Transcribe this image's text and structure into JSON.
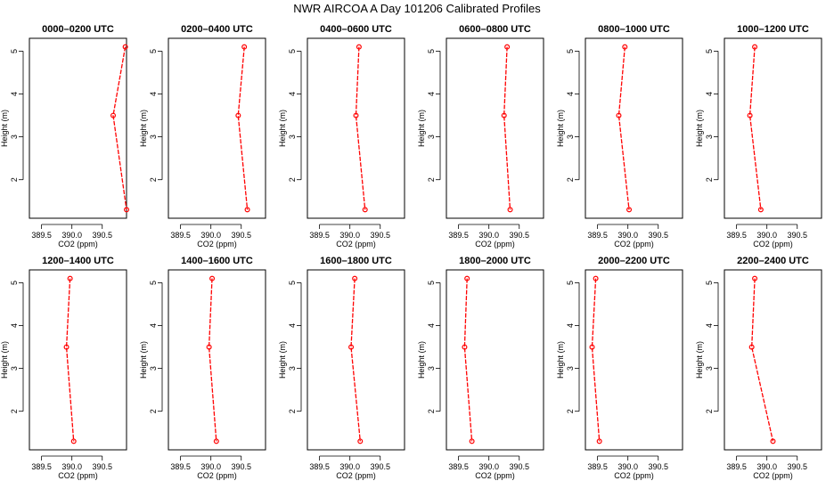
{
  "figure": {
    "title": "NWR AIRCOA A  Day 101206  Calibrated Profiles"
  },
  "chart_data": [
    {
      "type": "line",
      "title": "0000–0200 UTC",
      "xlabel": "CO2 (ppm)",
      "ylabel": "Height (m)",
      "x_ticks": [
        "389.5",
        "390.0",
        "390.5"
      ],
      "y_ticks": [
        "2",
        "3",
        "4",
        "5"
      ],
      "xlim": [
        389.3,
        390.9
      ],
      "ylim": [
        1.1,
        5.3
      ],
      "series": [
        {
          "color": "#ff0000",
          "x": [
            390.88,
            390.68,
            390.9
          ],
          "y": [
            5.1,
            3.5,
            1.3
          ]
        }
      ]
    },
    {
      "type": "line",
      "title": "0200–0400 UTC",
      "xlabel": "CO2 (ppm)",
      "ylabel": "Height (m)",
      "x_ticks": [
        "389.5",
        "390.0",
        "390.5"
      ],
      "y_ticks": [
        "2",
        "3",
        "4",
        "5"
      ],
      "xlim": [
        389.3,
        390.9
      ],
      "ylim": [
        1.1,
        5.3
      ],
      "series": [
        {
          "color": "#ff0000",
          "x": [
            390.55,
            390.45,
            390.6
          ],
          "y": [
            5.1,
            3.5,
            1.3
          ]
        }
      ]
    },
    {
      "type": "line",
      "title": "0400–0600 UTC",
      "xlabel": "CO2 (ppm)",
      "ylabel": "Height (m)",
      "x_ticks": [
        "389.5",
        "390.0",
        "390.5"
      ],
      "y_ticks": [
        "2",
        "3",
        "4",
        "5"
      ],
      "xlim": [
        389.3,
        390.9
      ],
      "ylim": [
        1.1,
        5.3
      ],
      "series": [
        {
          "color": "#ff0000",
          "x": [
            390.15,
            390.1,
            390.25
          ],
          "y": [
            5.1,
            3.5,
            1.3
          ]
        }
      ]
    },
    {
      "type": "line",
      "title": "0600–0800 UTC",
      "xlabel": "CO2 (ppm)",
      "ylabel": "Height (m)",
      "x_ticks": [
        "389.5",
        "390.0",
        "390.5"
      ],
      "y_ticks": [
        "2",
        "3",
        "4",
        "5"
      ],
      "xlim": [
        389.3,
        390.9
      ],
      "ylim": [
        1.1,
        5.3
      ],
      "series": [
        {
          "color": "#ff0000",
          "x": [
            390.3,
            390.25,
            390.35
          ],
          "y": [
            5.1,
            3.5,
            1.3
          ]
        }
      ]
    },
    {
      "type": "line",
      "title": "0800–1000 UTC",
      "xlabel": "CO2 (ppm)",
      "ylabel": "Height (m)",
      "x_ticks": [
        "389.5",
        "390.0",
        "390.5"
      ],
      "y_ticks": [
        "2",
        "3",
        "4",
        "5"
      ],
      "xlim": [
        389.3,
        390.9
      ],
      "ylim": [
        1.1,
        5.3
      ],
      "series": [
        {
          "color": "#ff0000",
          "x": [
            389.95,
            389.85,
            390.02
          ],
          "y": [
            5.1,
            3.5,
            1.3
          ]
        }
      ]
    },
    {
      "type": "line",
      "title": "1000–1200 UTC",
      "xlabel": "CO2 (ppm)",
      "ylabel": "Height (m)",
      "x_ticks": [
        "389.5",
        "390.0",
        "390.5"
      ],
      "y_ticks": [
        "2",
        "3",
        "4",
        "5"
      ],
      "xlim": [
        389.3,
        390.9
      ],
      "ylim": [
        1.1,
        5.3
      ],
      "series": [
        {
          "color": "#ff0000",
          "x": [
            389.8,
            389.72,
            389.9
          ],
          "y": [
            5.1,
            3.5,
            1.3
          ]
        }
      ]
    },
    {
      "type": "line",
      "title": "1200–1400 UTC",
      "xlabel": "CO2 (ppm)",
      "ylabel": "Height (m)",
      "x_ticks": [
        "389.5",
        "390.0",
        "390.5"
      ],
      "y_ticks": [
        "2",
        "3",
        "4",
        "5"
      ],
      "xlim": [
        389.3,
        390.9
      ],
      "ylim": [
        1.1,
        5.3
      ],
      "series": [
        {
          "color": "#ff0000",
          "x": [
            389.97,
            389.91,
            390.03
          ],
          "y": [
            5.1,
            3.5,
            1.3
          ]
        }
      ]
    },
    {
      "type": "line",
      "title": "1400–1600 UTC",
      "xlabel": "CO2 (ppm)",
      "ylabel": "Height (m)",
      "x_ticks": [
        "389.5",
        "390.0",
        "390.5"
      ],
      "y_ticks": [
        "2",
        "3",
        "4",
        "5"
      ],
      "xlim": [
        389.3,
        390.9
      ],
      "ylim": [
        1.1,
        5.3
      ],
      "series": [
        {
          "color": "#ff0000",
          "x": [
            390.02,
            389.97,
            390.09
          ],
          "y": [
            5.1,
            3.5,
            1.3
          ]
        }
      ]
    },
    {
      "type": "line",
      "title": "1600–1800 UTC",
      "xlabel": "CO2 (ppm)",
      "ylabel": "Height (m)",
      "x_ticks": [
        "389.5",
        "390.0",
        "390.5"
      ],
      "y_ticks": [
        "2",
        "3",
        "4",
        "5"
      ],
      "xlim": [
        389.3,
        390.9
      ],
      "ylim": [
        1.1,
        5.3
      ],
      "series": [
        {
          "color": "#ff0000",
          "x": [
            390.08,
            390.02,
            390.17
          ],
          "y": [
            5.1,
            3.5,
            1.3
          ]
        }
      ]
    },
    {
      "type": "line",
      "title": "1800–2000 UTC",
      "xlabel": "CO2 (ppm)",
      "ylabel": "Height (m)",
      "x_ticks": [
        "389.5",
        "390.0",
        "390.5"
      ],
      "y_ticks": [
        "2",
        "3",
        "4",
        "5"
      ],
      "xlim": [
        389.3,
        390.9
      ],
      "ylim": [
        1.1,
        5.3
      ],
      "series": [
        {
          "color": "#ff0000",
          "x": [
            389.64,
            389.6,
            389.72
          ],
          "y": [
            5.1,
            3.5,
            1.3
          ]
        }
      ]
    },
    {
      "type": "line",
      "title": "2000–2200 UTC",
      "xlabel": "CO2 (ppm)",
      "ylabel": "Height (m)",
      "x_ticks": [
        "389.5",
        "390.0",
        "390.5"
      ],
      "y_ticks": [
        "2",
        "3",
        "4",
        "5"
      ],
      "xlim": [
        389.3,
        390.9
      ],
      "ylim": [
        1.1,
        5.3
      ],
      "series": [
        {
          "color": "#ff0000",
          "x": [
            389.47,
            389.41,
            389.53
          ],
          "y": [
            5.1,
            3.5,
            1.3
          ]
        }
      ]
    },
    {
      "type": "line",
      "title": "2200–2400 UTC",
      "xlabel": "CO2 (ppm)",
      "ylabel": "Height (m)",
      "x_ticks": [
        "389.5",
        "390.0",
        "390.5"
      ],
      "y_ticks": [
        "2",
        "3",
        "4",
        "5"
      ],
      "xlim": [
        389.3,
        390.9
      ],
      "ylim": [
        1.1,
        5.3
      ],
      "series": [
        {
          "color": "#ff0000",
          "x": [
            389.8,
            389.75,
            390.1
          ],
          "y": [
            5.1,
            3.5,
            1.3
          ]
        }
      ]
    }
  ]
}
